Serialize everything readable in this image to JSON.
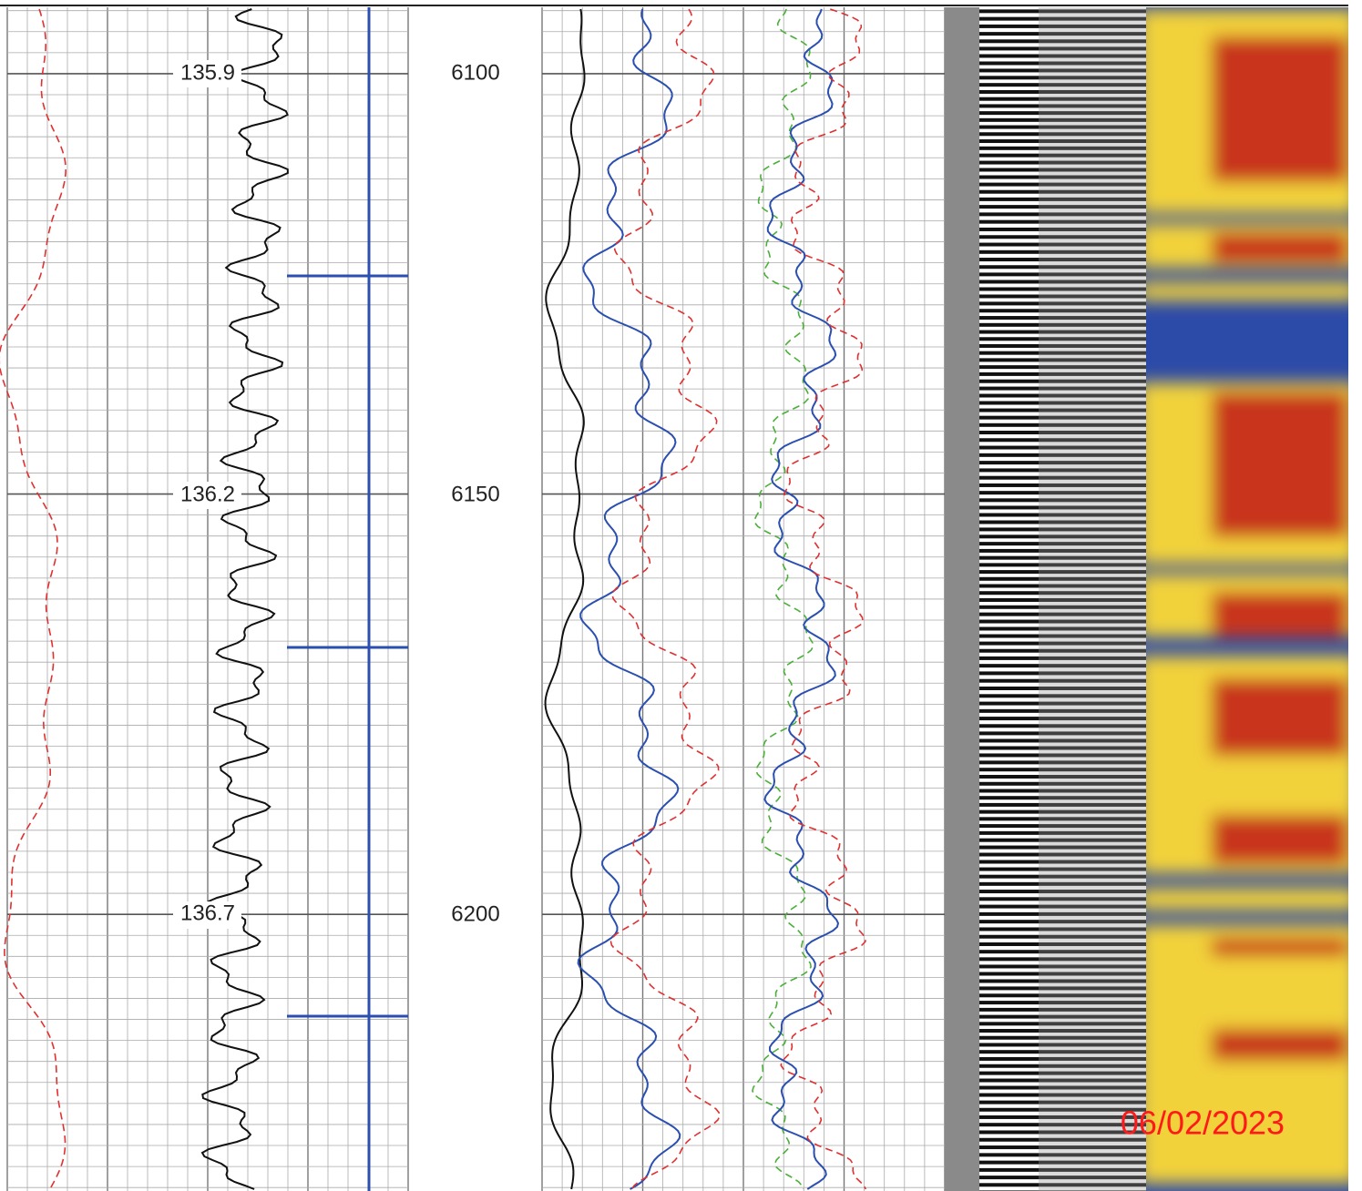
{
  "left_track_labels": [
    "135.9",
    "136.2",
    "136.7"
  ],
  "depth_labels": [
    "6100",
    "6150",
    "6200"
  ],
  "date_stamp": "06/02/2023"
}
